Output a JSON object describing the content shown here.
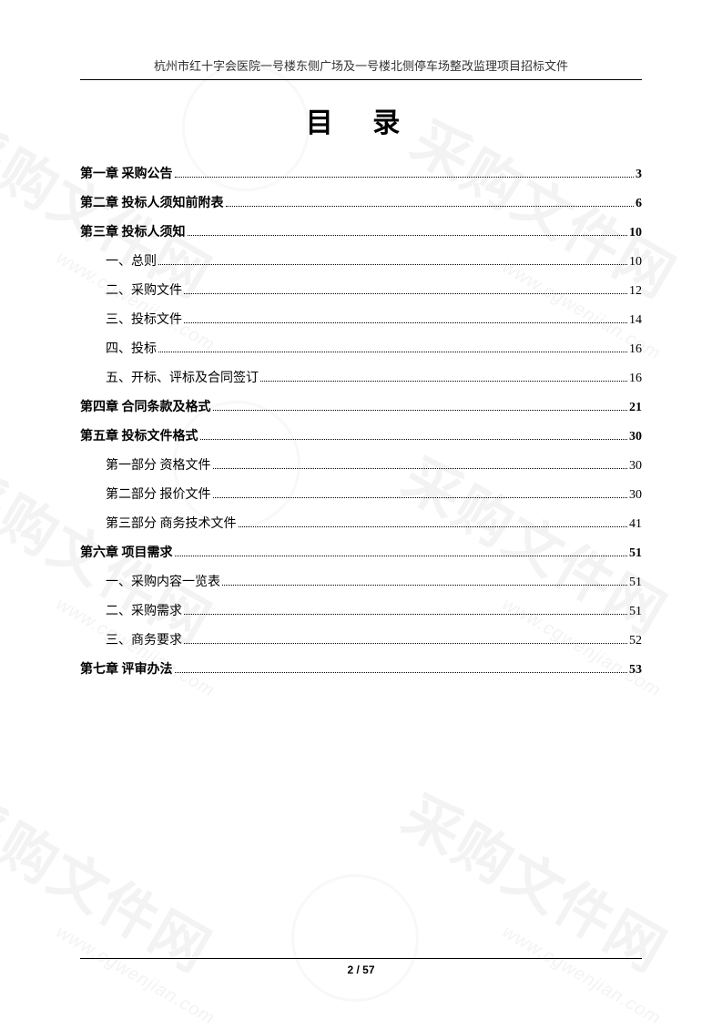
{
  "header": "杭州市红十字会医院一号楼东侧广场及一号楼北侧停车场整改监理项目招标文件",
  "title": "目  录",
  "footer": "2 / 57",
  "toc": [
    {
      "label": "第一章  采购公告",
      "page": "3",
      "level": 0,
      "bold": true
    },
    {
      "label": "第二章  投标人须知前附表",
      "page": "6",
      "level": 0,
      "bold": true
    },
    {
      "label": "第三章  投标人须知",
      "page": "10",
      "level": 0,
      "bold": true
    },
    {
      "label": "一、总则",
      "page": "10",
      "level": 1,
      "bold": false
    },
    {
      "label": "二、采购文件",
      "page": "12",
      "level": 1,
      "bold": false
    },
    {
      "label": "三、投标文件",
      "page": "14",
      "level": 1,
      "bold": false
    },
    {
      "label": "四、投标",
      "page": "16",
      "level": 1,
      "bold": false
    },
    {
      "label": "五、开标、评标及合同签订",
      "page": "16",
      "level": 1,
      "bold": false
    },
    {
      "label": "第四章  合同条款及格式",
      "page": "21",
      "level": 0,
      "bold": true
    },
    {
      "label": "第五章  投标文件格式",
      "page": "30",
      "level": 0,
      "bold": true
    },
    {
      "label": "第一部分  资格文件",
      "page": "30",
      "level": 1,
      "bold": false
    },
    {
      "label": "第二部分  报价文件",
      "page": "30",
      "level": 1,
      "bold": false
    },
    {
      "label": "第三部分  商务技术文件",
      "page": "41",
      "level": 1,
      "bold": false
    },
    {
      "label": "第六章  项目需求",
      "page": "51",
      "level": 0,
      "bold": true
    },
    {
      "label": "一、采购内容一览表",
      "page": "51",
      "level": 1,
      "bold": false
    },
    {
      "label": "二、采购需求",
      "page": "51",
      "level": 1,
      "bold": false
    },
    {
      "label": "三、商务要求",
      "page": "52",
      "level": 1,
      "bold": false
    },
    {
      "label": "第七章  评审办法",
      "page": "53",
      "level": 0,
      "bold": true
    }
  ],
  "watermarks": {
    "big_text": "采购文件网",
    "url_text": "www.cgwenjian.com"
  }
}
